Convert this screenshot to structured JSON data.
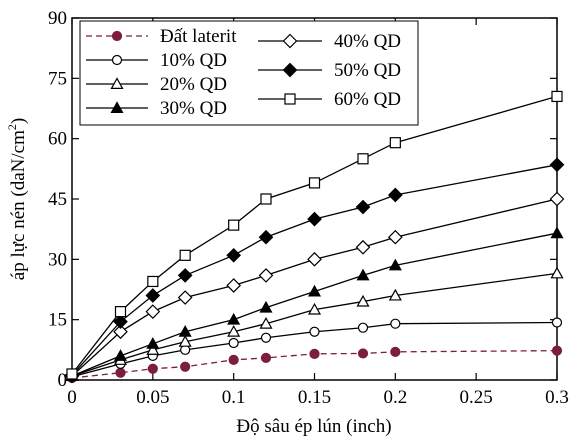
{
  "chart_data": {
    "type": "line",
    "title": "",
    "xlabel": "Độ sâu ép lún (inch)",
    "ylabel": "áp lực nén (daN/cm",
    "ylabel_sup": "2",
    "ylabel_close": ")",
    "xlim": [
      0,
      0.3
    ],
    "ylim": [
      0,
      90
    ],
    "xticks": [
      0,
      0.05,
      0.1,
      0.15,
      0.2,
      0.25,
      0.3
    ],
    "xtick_labels": [
      "0",
      "0.05",
      "0.1",
      "0.15",
      "0.2",
      "0.25",
      "0.3"
    ],
    "yticks": [
      0,
      15,
      30,
      45,
      60,
      75,
      90
    ],
    "ytick_labels": [
      "0",
      "15",
      "30",
      "45",
      "60",
      "75",
      "90"
    ],
    "grid": false,
    "legend_position": "top-left",
    "series": [
      {
        "name": "Đất laterit",
        "color": "#7b1f3c",
        "dashed": true,
        "marker": "circle-filled",
        "x": [
          0,
          0.03,
          0.05,
          0.07,
          0.1,
          0.12,
          0.15,
          0.18,
          0.2,
          0.3
        ],
        "y": [
          0.5,
          1.8,
          2.8,
          3.3,
          5,
          5.5,
          6.5,
          6.6,
          7,
          7.3
        ]
      },
      {
        "name": "10% QD",
        "color": "#000000",
        "dashed": false,
        "marker": "circle-open",
        "x": [
          0,
          0.03,
          0.05,
          0.07,
          0.1,
          0.12,
          0.15,
          0.18,
          0.2,
          0.3
        ],
        "y": [
          0.8,
          4,
          6,
          7.5,
          9.2,
          10.5,
          12,
          13,
          14,
          14.3
        ]
      },
      {
        "name": "20% QD",
        "color": "#000000",
        "dashed": false,
        "marker": "triangle-open",
        "x": [
          0,
          0.03,
          0.05,
          0.07,
          0.1,
          0.12,
          0.15,
          0.18,
          0.2,
          0.3
        ],
        "y": [
          1,
          5,
          7.5,
          9.5,
          12,
          14,
          17.5,
          19.5,
          21,
          26.5
        ]
      },
      {
        "name": "30% QD",
        "color": "#000000",
        "dashed": false,
        "marker": "triangle-filled",
        "x": [
          0,
          0.03,
          0.05,
          0.07,
          0.1,
          0.12,
          0.15,
          0.18,
          0.2,
          0.3
        ],
        "y": [
          1,
          6,
          9,
          12,
          15,
          18,
          22,
          26,
          28.5,
          36.5
        ]
      },
      {
        "name": "40% QD",
        "color": "#000000",
        "dashed": false,
        "marker": "diamond-open",
        "x": [
          0,
          0.03,
          0.05,
          0.07,
          0.1,
          0.12,
          0.15,
          0.18,
          0.2,
          0.3
        ],
        "y": [
          1,
          12,
          17,
          20.5,
          23.5,
          26,
          30,
          33,
          35.5,
          45
        ]
      },
      {
        "name": "50% QD",
        "color": "#000000",
        "dashed": false,
        "marker": "diamond-filled",
        "x": [
          0,
          0.03,
          0.05,
          0.07,
          0.1,
          0.12,
          0.15,
          0.18,
          0.2,
          0.3
        ],
        "y": [
          1.2,
          14.5,
          21,
          26,
          31,
          35.5,
          40,
          43,
          46,
          53.5
        ]
      },
      {
        "name": "60% QD",
        "color": "#000000",
        "dashed": false,
        "marker": "square-open",
        "x": [
          0,
          0.03,
          0.05,
          0.07,
          0.1,
          0.12,
          0.15,
          0.18,
          0.2,
          0.3
        ],
        "y": [
          1.5,
          17,
          24.5,
          31,
          38.5,
          45,
          49,
          55,
          59,
          70.5
        ]
      }
    ]
  }
}
